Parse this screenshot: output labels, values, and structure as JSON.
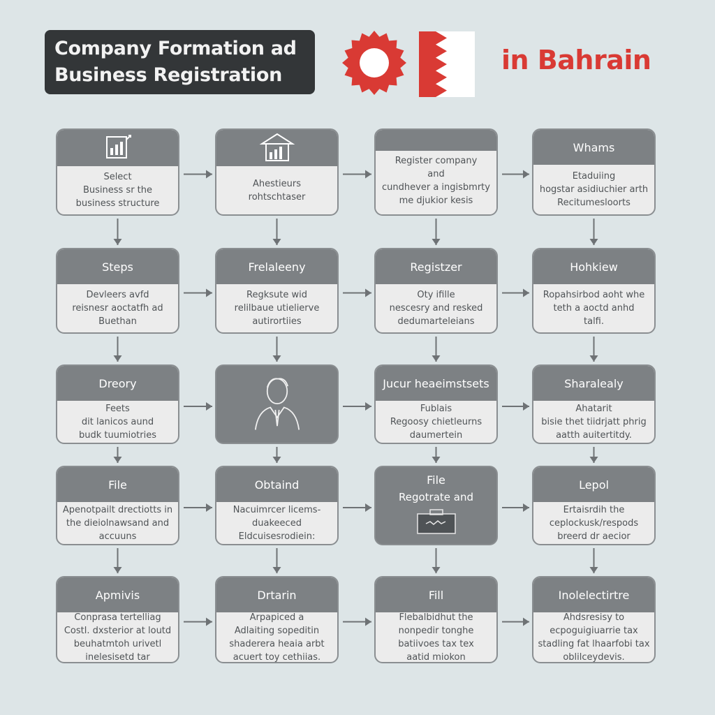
{
  "header": {
    "title_lines": [
      "Company Formation ad",
      "Business Registration"
    ],
    "region_label": "in Bahrain",
    "title_bg": "#333638",
    "accent": "#d93a34"
  },
  "icons": {
    "seal": "red-sun-seal-icon",
    "flag": "bahrain-flag-icon",
    "document_chart": "document-chart-icon",
    "building_chart": "building-chart-icon",
    "person": "businessman-icon",
    "briefcase": "briefcase-icon"
  },
  "rows": [
    [
      {
        "head": "",
        "icon": "document_chart",
        "lines": [
          "Select",
          "Business sr the",
          "business structure"
        ]
      },
      {
        "head": "",
        "icon": "building_chart",
        "lines": [
          "Ahestieurs",
          "rohtschtaser"
        ]
      },
      {
        "head": "",
        "lines": [
          "Register company",
          "and",
          "cundhever a ingisbmrty",
          "me djukior kesis"
        ]
      },
      {
        "head": "Whams",
        "lines": [
          "Etaduiing",
          "hogstar asidiuchier arth",
          "Recitumesloorts"
        ]
      }
    ],
    [
      {
        "head": "Steps",
        "lines": [
          "Devleers avfd",
          "reisnesr aoctatfh ad",
          "Buethan"
        ]
      },
      {
        "head": "Frelaleeny",
        "lines": [
          "Regksute wid",
          "relilbaue utielierve",
          "autirortiies"
        ]
      },
      {
        "head": "Registzer",
        "lines": [
          "Oty ifille",
          "nescesry and resked",
          "dedumarteleians"
        ]
      },
      {
        "head": "Hohkiew",
        "lines": [
          "Ropahsirbod aoht whe",
          "teth a aoctd anhd",
          "talfi."
        ]
      }
    ],
    [
      {
        "head": "Dreory",
        "lines": [
          "Feets",
          "dit lanicos aund",
          "budk tuumiotries"
        ]
      },
      {
        "head": "",
        "icon": "person",
        "lines": []
      },
      {
        "head": "Jucur heaeimstsets",
        "lines": [
          "Fublais",
          "Regoosy chietleurns",
          "daumertein"
        ]
      },
      {
        "head": "Sharalealy",
        "lines": [
          "Ahatarit",
          "bisie thet tiidrjatt phrig",
          "aatth auitertitdy."
        ]
      }
    ],
    [
      {
        "head": "File",
        "lines": [
          "Apenotpailt drectiotts in",
          "the dieiolnawsand and",
          "accuuns"
        ]
      },
      {
        "head": "Obtaind",
        "lines": [
          "Nacuimrcer licems-",
          "duakeeced",
          "Eldcuisesrodiein:"
        ]
      },
      {
        "head": "File",
        "icon": "briefcase",
        "lines": [
          "Regotrate and"
        ]
      },
      {
        "head": "Lepol",
        "lines": [
          "Ertaisrdih the",
          "ceplockusk/respods",
          "breerd dr aecior"
        ]
      }
    ],
    [
      {
        "head": "Apmivis",
        "lines": [
          "Conprasa tertelliag",
          "Costl. dxsterior at loutd",
          "beuhatmtoh urivetl",
          "inelesisetd tar"
        ]
      },
      {
        "head": "Drtarin",
        "lines": [
          "Arpapiced a",
          "Adlaiting sopeditin",
          "shaderera heaia arbt",
          "acuert toy cethiias."
        ]
      },
      {
        "head": "Fill",
        "lines": [
          "Flebalbidhut the",
          "nonpedir tonghe",
          "batiivoes tax tex",
          "aatid miokon"
        ]
      },
      {
        "head": "Inolelectirtre",
        "lines": [
          "Ahdsresisy to",
          "ecpoguigiuarrie tax",
          "stadling fat lhaarfobi tax",
          "oblilceydevis."
        ]
      }
    ]
  ]
}
